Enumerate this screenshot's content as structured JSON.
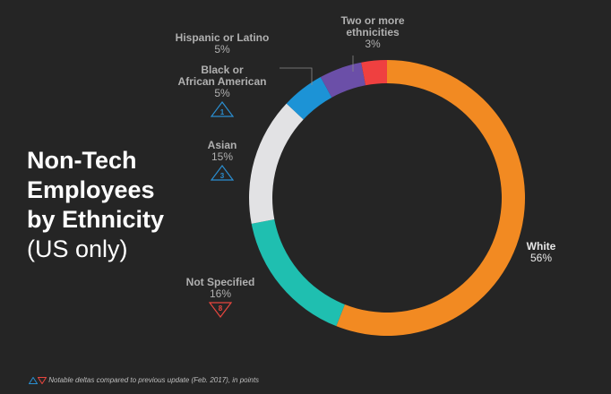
{
  "title": {
    "line1": "Non-Tech",
    "line2": "Employees",
    "line3": "by Ethnicity",
    "line4": "(US only)"
  },
  "colors": {
    "background": "#252525",
    "white": "#f28a22",
    "not_specified": "#1fbfb0",
    "asian": "#e2e2e4",
    "black": "#1c93d6",
    "hispanic": "#6b4fa8",
    "two_or_more": "#ef4040",
    "delta_up": "#2a8ed0",
    "delta_down": "#e8463e"
  },
  "chart_data": {
    "type": "pie",
    "donut": true,
    "categories": [
      "White",
      "Not Specified",
      "Asian",
      "Black or African American",
      "Hispanic or Latino",
      "Two or more ethnicities"
    ],
    "values": [
      56,
      16,
      15,
      5,
      5,
      3
    ],
    "unit": "%",
    "deltas": [
      {
        "category": "Black or African American",
        "direction": "up",
        "value": "1"
      },
      {
        "category": "Asian",
        "direction": "up",
        "value": "3"
      },
      {
        "category": "Not Specified",
        "direction": "down",
        "value": "8"
      }
    ]
  },
  "labels": {
    "white": {
      "name": "White",
      "pct": "56%"
    },
    "not_specified": {
      "name": "Not Specified",
      "pct": "16%",
      "delta": "8"
    },
    "asian": {
      "name": "Asian",
      "pct": "15%",
      "delta": "3"
    },
    "black": {
      "name1": "Black or",
      "name2": "African American",
      "pct": "5%",
      "delta": "1"
    },
    "hispanic": {
      "name": "Hispanic or Latino",
      "pct": "5%"
    },
    "two": {
      "name1": "Two or more",
      "name2": "ethnicities",
      "pct": "3%"
    }
  },
  "footnote": "Notable deltas compared to previous update (Feb. 2017), in points"
}
